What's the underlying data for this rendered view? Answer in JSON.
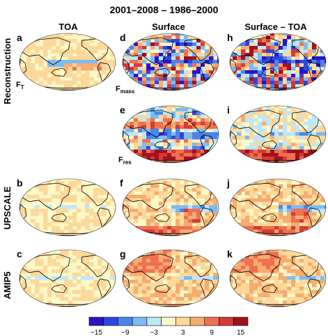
{
  "title": "2001–2008 – 1986–2000",
  "columns": [
    "TOA",
    "Surface",
    "Surface – TOA"
  ],
  "rows": [
    "Reconstruction",
    "UPSCALE",
    "AMIP5"
  ],
  "panel_letters": [
    "a",
    "b",
    "c",
    "d",
    "e",
    "f",
    "g",
    "h",
    "i",
    "j",
    "k"
  ],
  "flux_labels": {
    "ft": {
      "main": "F",
      "sub": "T"
    },
    "fmass": {
      "main": "F",
      "sub": "mass"
    },
    "fres": {
      "main": "F",
      "sub": "res"
    }
  },
  "colorbar": {
    "tick_labels": [
      "−15",
      "−9",
      "−3",
      "3",
      "9",
      "15"
    ],
    "colors": [
      "#2b14c8",
      "#2f46e0",
      "#4a86ea",
      "#7cbcf2",
      "#bfe7fa",
      "#fdf8c8",
      "#fcd99a",
      "#f7ac70",
      "#ee7152",
      "#d63a37",
      "#a0121f"
    ]
  },
  "chart_data": {
    "type": "heatmap",
    "title": "2001–2008 – 1986–2000",
    "description_panels": [
      {
        "letter": "a",
        "row": "Reconstruction",
        "column": "TOA",
        "flux": "F_T"
      },
      {
        "letter": "d",
        "row": "Reconstruction",
        "column": "Surface",
        "flux": "F_mass"
      },
      {
        "letter": "h",
        "row": "Reconstruction",
        "column": "Surface – TOA"
      },
      {
        "letter": "e",
        "row": "Reconstruction",
        "column": "Surface",
        "flux": "F_res"
      },
      {
        "letter": "i",
        "row": "Reconstruction",
        "column": "Surface – TOA"
      },
      {
        "letter": "b",
        "row": "UPSCALE",
        "column": "TOA"
      },
      {
        "letter": "f",
        "row": "UPSCALE",
        "column": "Surface"
      },
      {
        "letter": "j",
        "row": "UPSCALE",
        "column": "Surface – TOA"
      },
      {
        "letter": "c",
        "row": "AMIP5",
        "column": "TOA"
      },
      {
        "letter": "g",
        "row": "AMIP5",
        "column": "Surface"
      },
      {
        "letter": "k",
        "row": "AMIP5",
        "column": "Surface – TOA"
      }
    ],
    "colorbar_levels": [
      -15,
      -12,
      -9,
      -6,
      -3,
      0,
      3,
      6,
      9,
      12,
      15
    ],
    "colorbar_ticks": [
      -15,
      -9,
      -3,
      3,
      9,
      15
    ]
  }
}
